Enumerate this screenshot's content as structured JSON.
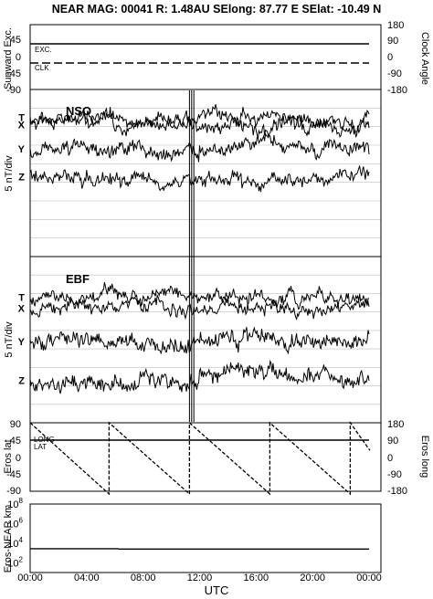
{
  "header": "NEAR MAG: 00041  R: 1.48AU  SElong:   87.77 E  SElat:  -10.49 N",
  "colors": {
    "ink": "#000000",
    "grid": "#bdbdbd",
    "background": "#ffffff"
  },
  "chart_data": [
    {
      "type": "line",
      "panel": "angles",
      "ylabel": "Sunward Exc.",
      "ylabel_right": "Clock Angle",
      "yticks": [
        "45",
        "0",
        "-45",
        "-90"
      ],
      "yticks_right": [
        "180",
        "90",
        "0",
        "-90",
        "-180"
      ],
      "ylim": [
        -90,
        90
      ],
      "ylim_right": [
        -180,
        180
      ],
      "grid": false,
      "series": [
        {
          "name": "EXC.",
          "style": "solid",
          "values": [
            [
              0,
              34
            ],
            [
              24,
              34
            ]
          ]
        },
        {
          "name": "CLK",
          "style": "dashed",
          "values": [
            [
              0,
              -16
            ],
            [
              24,
              -16
            ]
          ]
        }
      ]
    },
    {
      "type": "line",
      "panel": "NSO",
      "title": "NSO",
      "ylabel": "5 nT/div",
      "grid": true,
      "divisions": 9,
      "series": [
        {
          "name": "T",
          "base_div": 1.5,
          "noise": 0.22,
          "trend": [
            0,
            0,
            0.2,
            0.1,
            0,
            -0.1,
            0,
            0.1,
            0
          ]
        },
        {
          "name": "X",
          "base_div": 1.9,
          "noise": 0.25,
          "trend": [
            0,
            -0.2,
            0,
            0,
            0,
            0.2,
            0,
            0,
            0
          ]
        },
        {
          "name": "Y",
          "base_div": 3.2,
          "noise": 0.25,
          "trend": [
            0,
            0,
            0,
            0.3,
            0,
            -0.3,
            0,
            0,
            0
          ]
        },
        {
          "name": "Z",
          "base_div": 4.7,
          "noise": 0.25,
          "trend": [
            0,
            0,
            0.1,
            0,
            0,
            0.2,
            0,
            0,
            0
          ]
        }
      ],
      "spike_hours": [
        10.9,
        11.05,
        11.2
      ]
    },
    {
      "type": "line",
      "panel": "EBF",
      "title": "EBF",
      "ylabel": "5 nT/div",
      "grid": true,
      "divisions": 9,
      "series": [
        {
          "name": "T",
          "base_div": 2.2,
          "noise": 0.22,
          "trend": [
            0,
            0,
            0,
            0,
            0,
            0,
            0,
            0,
            0
          ]
        },
        {
          "name": "X",
          "base_div": 2.8,
          "noise": 0.22,
          "trend": [
            0,
            0,
            0,
            0,
            0,
            0,
            0,
            0,
            0
          ]
        },
        {
          "name": "Y",
          "base_div": 4.6,
          "noise": 0.3,
          "trend": [
            0,
            0,
            0,
            0.2,
            0,
            -0.3,
            0,
            0,
            0
          ]
        },
        {
          "name": "Z",
          "base_div": 6.7,
          "noise": 0.3,
          "trend": [
            0.3,
            0.2,
            0.1,
            0,
            -0.4,
            -0.2,
            -0.2,
            -0.1,
            -0.1
          ]
        }
      ],
      "spike_hours": [
        10.9,
        11.05,
        11.2
      ]
    },
    {
      "type": "line",
      "panel": "eros",
      "ylabel": "Eros lat",
      "ylabel_right": "Eros long",
      "yticks": [
        "90",
        "45",
        "0",
        "-45",
        "-90"
      ],
      "yticks_right": [
        "180",
        "90",
        "0",
        "-90",
        "-180"
      ],
      "ylim": [
        -90,
        90
      ],
      "ylim_right": [
        -180,
        180
      ],
      "grid": false,
      "series": [
        {
          "name": "LAT",
          "style": "solid",
          "values": [
            [
              0,
              48
            ],
            [
              24,
              48
            ]
          ]
        },
        {
          "name": "LONG",
          "style": "dashed",
          "values": [
            [
              0,
              180
            ],
            [
              5.4,
              -180
            ],
            [
              5.4,
              180
            ],
            [
              10.9,
              -180
            ],
            [
              10.9,
              180
            ],
            [
              16.4,
              -180
            ],
            [
              16.4,
              180
            ],
            [
              21.9,
              -180
            ],
            [
              21.9,
              180
            ],
            [
              24,
              40
            ]
          ]
        }
      ],
      "labels": [
        "LONG",
        "LAT"
      ]
    },
    {
      "type": "line",
      "panel": "range",
      "ylabel": "Eros-NEAR km",
      "yscale": "log",
      "yticks": [
        "10^2",
        "10^4",
        "10^6",
        "10^8"
      ],
      "ylim": [
        10,
        100000000
      ],
      "grid": false,
      "series": [
        {
          "name": "Eros-NEAR km",
          "values": [
            [
              0,
              2700
            ],
            [
              6,
              2700
            ],
            [
              6.1,
              2500
            ],
            [
              24,
              2500
            ]
          ]
        }
      ]
    }
  ],
  "x_axis": {
    "label": "UTC",
    "ticks": [
      "00:00",
      "04:00",
      "08:00",
      "12:00",
      "16:00",
      "20:00",
      "00:00"
    ],
    "range_hours": [
      0,
      24
    ]
  }
}
